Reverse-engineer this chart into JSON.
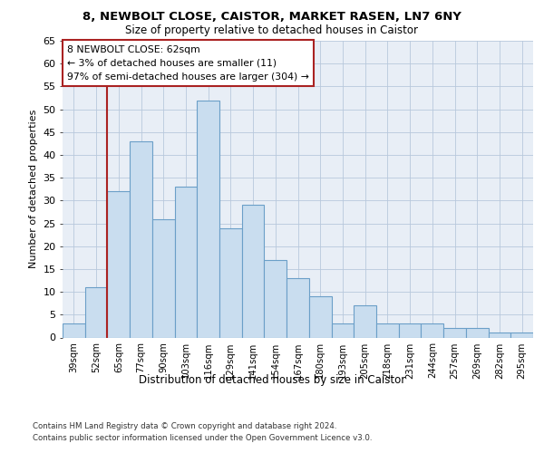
{
  "title1": "8, NEWBOLT CLOSE, CAISTOR, MARKET RASEN, LN7 6NY",
  "title2": "Size of property relative to detached houses in Caistor",
  "xlabel": "Distribution of detached houses by size in Caistor",
  "ylabel": "Number of detached properties",
  "categories": [
    "39sqm",
    "52sqm",
    "65sqm",
    "77sqm",
    "90sqm",
    "103sqm",
    "116sqm",
    "129sqm",
    "141sqm",
    "154sqm",
    "167sqm",
    "180sqm",
    "193sqm",
    "205sqm",
    "218sqm",
    "231sqm",
    "244sqm",
    "257sqm",
    "269sqm",
    "282sqm",
    "295sqm"
  ],
  "values": [
    3,
    11,
    32,
    43,
    26,
    33,
    52,
    24,
    29,
    17,
    13,
    9,
    3,
    7,
    3,
    3,
    3,
    2,
    2,
    1,
    1
  ],
  "bar_color": "#c9ddef",
  "bar_edge_color": "#6b9fc8",
  "grid_color": "#b8c8dc",
  "background_color": "#e8eef6",
  "marker_label": "8 NEWBOLT CLOSE: 62sqm\n← 3% of detached houses are smaller (11)\n97% of semi-detached houses are larger (304) →",
  "marker_line_color": "#aa2222",
  "annotation_box_color": "#ffffff",
  "annotation_box_edge": "#aa2222",
  "footer1": "Contains HM Land Registry data © Crown copyright and database right 2024.",
  "footer2": "Contains public sector information licensed under the Open Government Licence v3.0.",
  "ylim": [
    0,
    65
  ],
  "yticks": [
    0,
    5,
    10,
    15,
    20,
    25,
    30,
    35,
    40,
    45,
    50,
    55,
    60,
    65
  ]
}
